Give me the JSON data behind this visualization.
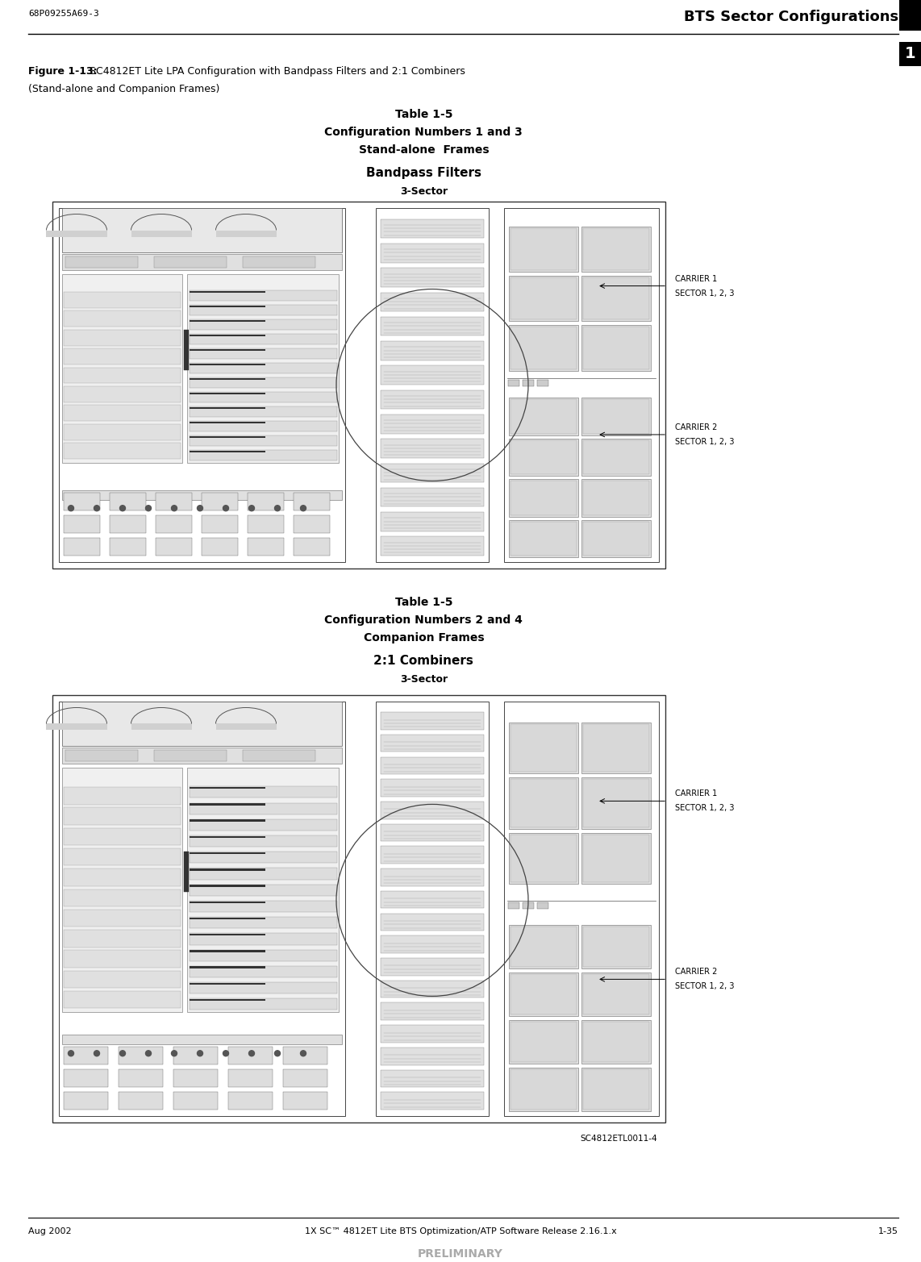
{
  "page_width": 11.42,
  "page_height": 15.65,
  "bg_color": "#ffffff",
  "header_left": "68P09255A69-3",
  "header_right": "BTS Sector Configurations",
  "tab_num": "1",
  "figure_caption_bold": "Figure 1-13:",
  "figure_caption_rest": " SC4812ET Lite LPA Configuration with Bandpass Filters and 2:1 Combiners",
  "figure_caption_line2": "(Stand-alone and Companion Frames)",
  "table1_line1": "Table 1-5",
  "table1_line2": "Configuration Numbers 1 and 3",
  "table1_line3": "Stand-alone  Frames",
  "table1_line4": "Bandpass Filters",
  "table1_line5": "3-Sector",
  "table2_line1": "Table 1-5",
  "table2_line2": "Configuration Numbers 2 and 4",
  "table2_line3": "Companion Frames",
  "table2_line4": "2:1 Combiners",
  "table2_line5": "3-Sector",
  "carrier1_a": "CARRIER 1",
  "carrier1_b": "SECTOR 1, 2, 3",
  "carrier2_a": "CARRIER 2",
  "carrier2_b": "SECTOR 1, 2, 3",
  "carrier3_a": "CARRIER 1",
  "carrier3_b": "SECTOR 1, 2, 3",
  "carrier4_a": "CARRIER 2",
  "carrier4_b": "SECTOR 1, 2, 3",
  "bottom_label": "SC4812ETL0011-4",
  "footer_left": "Aug 2002",
  "footer_center": "1X SC™ 4812ET Lite BTS Optimization/ATP Software Release 2.16.1.x",
  "footer_right": "1-35",
  "footer_prelim": "PRELIMINARY"
}
